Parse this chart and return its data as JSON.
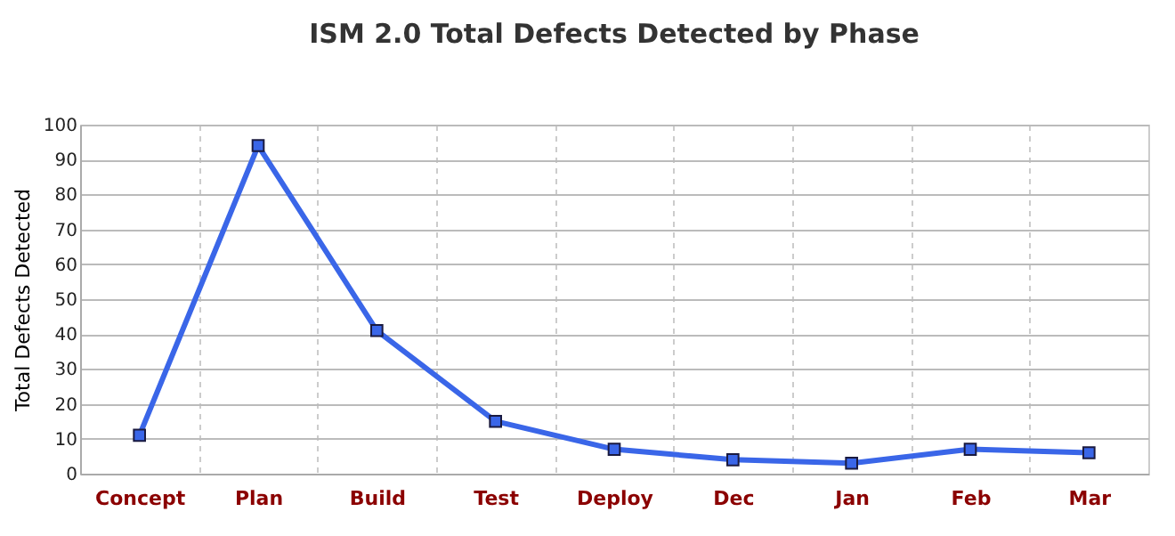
{
  "chart_data": {
    "type": "line",
    "title": "ISM 2.0 Total Defects Detected by Phase",
    "ylabel": "Total Defects Detected",
    "categories": [
      "Concept",
      "Plan",
      "Build",
      "Test",
      "Deploy",
      "Dec",
      "Jan",
      "Feb",
      "Mar"
    ],
    "series": [
      {
        "color": "#3a66e8",
        "values": [
          11,
          94,
          41,
          15,
          7,
          4,
          3,
          7,
          6
        ]
      }
    ],
    "ylim": [
      0,
      100
    ],
    "yticks": [
      0,
      10,
      20,
      30,
      40,
      50,
      60,
      70,
      80,
      90,
      100
    ],
    "grid": true,
    "marker": "square",
    "line_style": "solid"
  }
}
